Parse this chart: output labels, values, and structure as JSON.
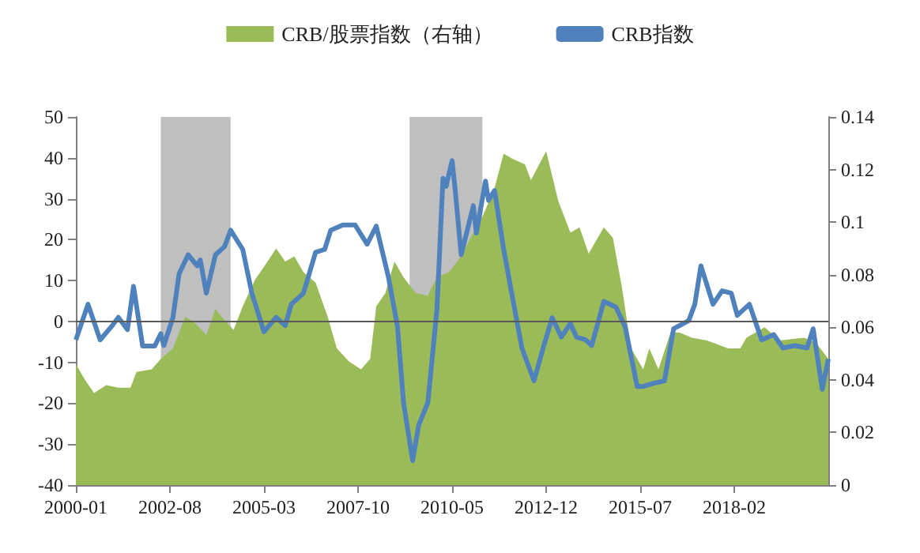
{
  "chart_data": {
    "type": "line",
    "legend": "top",
    "grid": false,
    "marker": "none",
    "xlim": [
      "2000-01",
      "2020-09"
    ],
    "xticks": [
      {
        "value": "2000-01",
        "label": "2000-01"
      },
      {
        "value": "2002-08",
        "label": "2002-08"
      },
      {
        "value": "2005-03",
        "label": "2005-03"
      },
      {
        "value": "2007-10",
        "label": "2007-10"
      },
      {
        "value": "2010-05",
        "label": "2010-05"
      },
      {
        "value": "2012-12",
        "label": "2012-12"
      },
      {
        "value": "2015-07",
        "label": "2015-07"
      },
      {
        "value": "2018-02",
        "label": "2018-02"
      }
    ],
    "ylim": [
      -40,
      50
    ],
    "yticks": [
      -40,
      -30,
      -20,
      -10,
      0,
      10,
      20,
      30,
      40,
      50
    ],
    "y2lim": [
      0,
      0.14
    ],
    "y2ticks": [
      0,
      0.02,
      0.04,
      0.06,
      0.08,
      0.1,
      0.12,
      0.14
    ],
    "ref_lines": [
      {
        "axis": "y",
        "value": 0,
        "color": "#595959",
        "line_style": "solid"
      }
    ],
    "bands": [
      {
        "axis": "x",
        "from": "2002-05",
        "to": "2004-04",
        "color": "#bfbfbf"
      },
      {
        "axis": "x",
        "from": "2009-03",
        "to": "2011-03",
        "color": "#bfbfbf"
      }
    ],
    "series": [
      {
        "name": "CRB/股票指数（右轴）",
        "type": "area",
        "axis": "y2",
        "color": "#9bbb59",
        "x": [
          "2000-01",
          "2000-04",
          "2000-07",
          "2000-11",
          "2001-03",
          "2001-07",
          "2001-09",
          "2002-02",
          "2002-05",
          "2002-09",
          "2003-01",
          "2003-04",
          "2003-08",
          "2003-11",
          "2004-01",
          "2004-05",
          "2004-08",
          "2004-12",
          "2005-03",
          "2005-07",
          "2005-10",
          "2006-01",
          "2006-04",
          "2006-08",
          "2006-12",
          "2007-03",
          "2007-07",
          "2007-11",
          "2008-02",
          "2008-04",
          "2008-07",
          "2008-10",
          "2009-01",
          "2009-05",
          "2009-09",
          "2009-12",
          "2010-04",
          "2010-08",
          "2010-12",
          "2011-03",
          "2011-07",
          "2011-10",
          "2012-01",
          "2012-05",
          "2012-07",
          "2012-12",
          "2013-04",
          "2013-08",
          "2013-11",
          "2014-02",
          "2014-07",
          "2014-10",
          "2015-01",
          "2015-04",
          "2015-08",
          "2015-10",
          "2016-01",
          "2016-05",
          "2016-08",
          "2016-12",
          "2017-05",
          "2017-12",
          "2018-04",
          "2018-06",
          "2018-12",
          "2019-05",
          "2020-01",
          "2020-05",
          "2020-09"
        ],
        "values": [
          0.046,
          0.04,
          0.035,
          0.038,
          0.037,
          0.037,
          0.043,
          0.044,
          0.048,
          0.052,
          0.064,
          0.062,
          0.057,
          0.067,
          0.064,
          0.059,
          0.068,
          0.078,
          0.083,
          0.09,
          0.085,
          0.087,
          0.081,
          0.077,
          0.064,
          0.052,
          0.047,
          0.044,
          0.048,
          0.068,
          0.073,
          0.085,
          0.079,
          0.073,
          0.072,
          0.079,
          0.081,
          0.087,
          0.096,
          0.102,
          0.113,
          0.126,
          0.124,
          0.122,
          0.116,
          0.127,
          0.108,
          0.096,
          0.098,
          0.088,
          0.098,
          0.094,
          0.075,
          0.052,
          0.044,
          0.052,
          0.044,
          0.058,
          0.058,
          0.056,
          0.055,
          0.052,
          0.052,
          0.056,
          0.06,
          0.055,
          0.056,
          0.054,
          0.048
        ]
      },
      {
        "name": "CRB指数",
        "type": "line",
        "color": "#4f81bd",
        "x": [
          "2000-01",
          "2000-05",
          "2000-09",
          "2001-01",
          "2001-03",
          "2001-06",
          "2001-08",
          "2001-11",
          "2002-03",
          "2002-05",
          "2002-06",
          "2002-09",
          "2002-11",
          "2003-02",
          "2003-05",
          "2003-06",
          "2003-08",
          "2003-11",
          "2004-02",
          "2004-04",
          "2004-08",
          "2004-11",
          "2005-03",
          "2005-07",
          "2005-10",
          "2005-12",
          "2006-04",
          "2006-08",
          "2006-11",
          "2007-01",
          "2007-05",
          "2007-09",
          "2008-01",
          "2008-04",
          "2008-08",
          "2008-11",
          "2009-01",
          "2009-03",
          "2009-04",
          "2009-06",
          "2009-09",
          "2009-12",
          "2010-02",
          "2010-03",
          "2010-05",
          "2010-06",
          "2010-08",
          "2010-12",
          "2011-01",
          "2011-04",
          "2011-05",
          "2011-07",
          "2011-10",
          "2012-01",
          "2012-04",
          "2012-08",
          "2012-11",
          "2013-02",
          "2013-05",
          "2013-08",
          "2013-10",
          "2014-01",
          "2014-03",
          "2014-07",
          "2014-11",
          "2015-02",
          "2015-06",
          "2015-08",
          "2015-11",
          "2016-03",
          "2016-06",
          "2016-11",
          "2017-01",
          "2017-03",
          "2017-07",
          "2017-10",
          "2018-01",
          "2018-03",
          "2018-07",
          "2018-11",
          "2019-03",
          "2019-06",
          "2019-10",
          "2020-02",
          "2020-04",
          "2020-07",
          "2020-09"
        ],
        "values": [
          -4.5,
          4.2,
          -4.5,
          -1,
          1,
          -2,
          8.6,
          -6,
          -6,
          -3,
          -5.9,
          1,
          11.6,
          16.3,
          13.6,
          15,
          6.9,
          16.3,
          18.3,
          22.3,
          17.6,
          6.9,
          -2.5,
          1,
          -1,
          4.2,
          6.9,
          16.9,
          17.6,
          22.3,
          23.6,
          23.6,
          18.9,
          23.3,
          10.9,
          -1.2,
          -19.9,
          -29.3,
          -34,
          -25.3,
          -19.9,
          2.9,
          35,
          33,
          39.3,
          32.3,
          16.3,
          28.3,
          21.6,
          34.3,
          29.6,
          32,
          17.6,
          5.5,
          -6.5,
          -14.5,
          -6.5,
          0.9,
          -3.8,
          -0.5,
          -3.8,
          -4.5,
          -5.9,
          4.9,
          3.5,
          -1.2,
          -15.9,
          -15.9,
          -15.2,
          -14.5,
          -1.8,
          0.2,
          4.2,
          13.6,
          4.2,
          7.5,
          6.9,
          1.5,
          4.2,
          -4.5,
          -3.2,
          -6.5,
          -5.9,
          -6.5,
          -1.8,
          -16.6,
          -9.2
        ]
      }
    ]
  }
}
